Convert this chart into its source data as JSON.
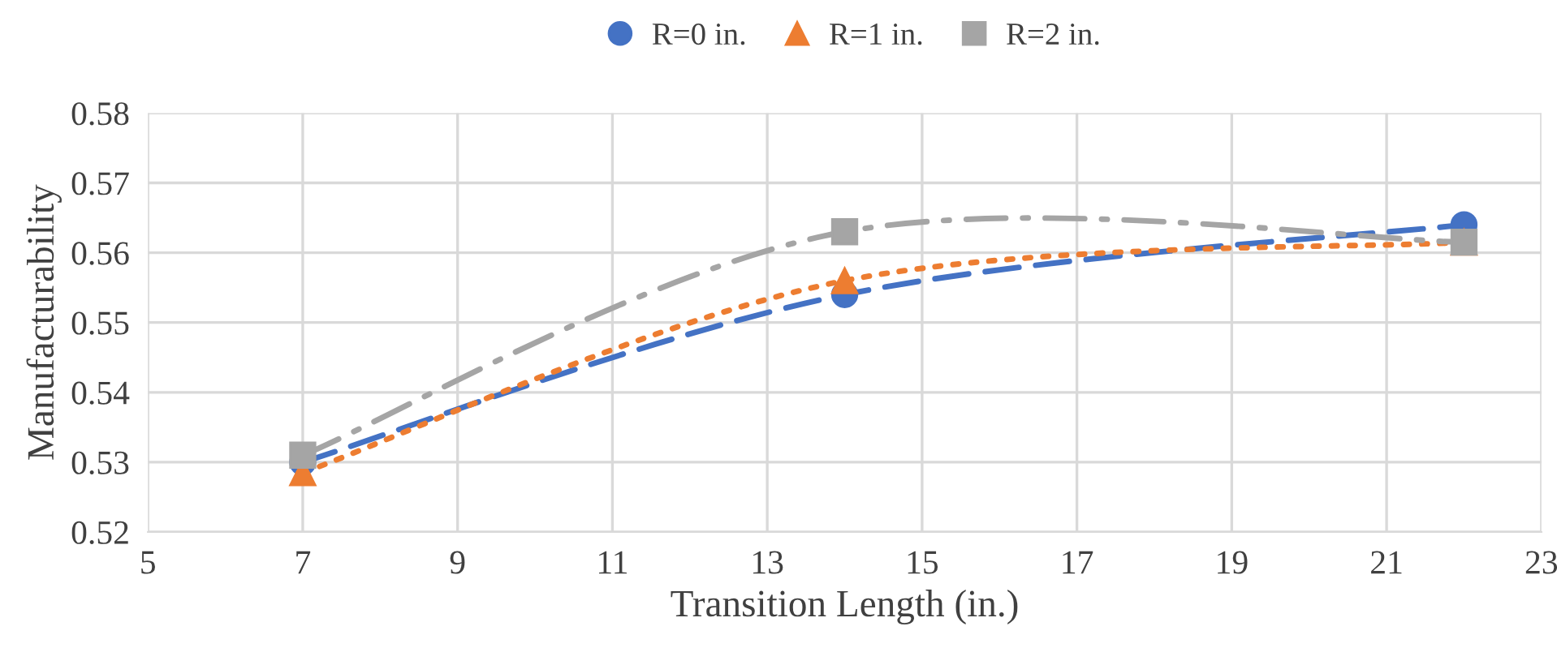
{
  "chart_data": {
    "type": "line",
    "xlabel": "Transition Length (in.)",
    "ylabel": "Manufacturability",
    "x": [
      7,
      14,
      22
    ],
    "series": [
      {
        "name": "R=0 in.",
        "color": "#4472c4",
        "values": [
          0.53,
          0.554,
          0.564
        ],
        "marker": "circle",
        "line_style": "dashed"
      },
      {
        "name": "R=1 in.",
        "color": "#ed7d31",
        "values": [
          0.5285,
          0.556,
          0.5615
        ],
        "marker": "triangle",
        "line_style": "dotted"
      },
      {
        "name": "R=2 in.",
        "color": "#a5a5a5",
        "values": [
          0.531,
          0.563,
          0.5615
        ],
        "marker": "square",
        "line_style": "dashdot"
      }
    ],
    "xlim": [
      5,
      23
    ],
    "xticks": [
      5,
      7,
      9,
      11,
      13,
      15,
      17,
      19,
      21,
      23
    ],
    "ylim": [
      0.52,
      0.58
    ],
    "yticks": [
      {
        "value": 0.52,
        "label": "0.52"
      },
      {
        "value": 0.53,
        "label": "0.53"
      },
      {
        "value": 0.54,
        "label": "0.54"
      },
      {
        "value": 0.55,
        "label": "0.55"
      },
      {
        "value": 0.56,
        "label": "0.56"
      },
      {
        "value": 0.57,
        "label": "0.57"
      },
      {
        "value": 0.58,
        "label": "0.58"
      }
    ],
    "grid": true,
    "legend": "top"
  }
}
